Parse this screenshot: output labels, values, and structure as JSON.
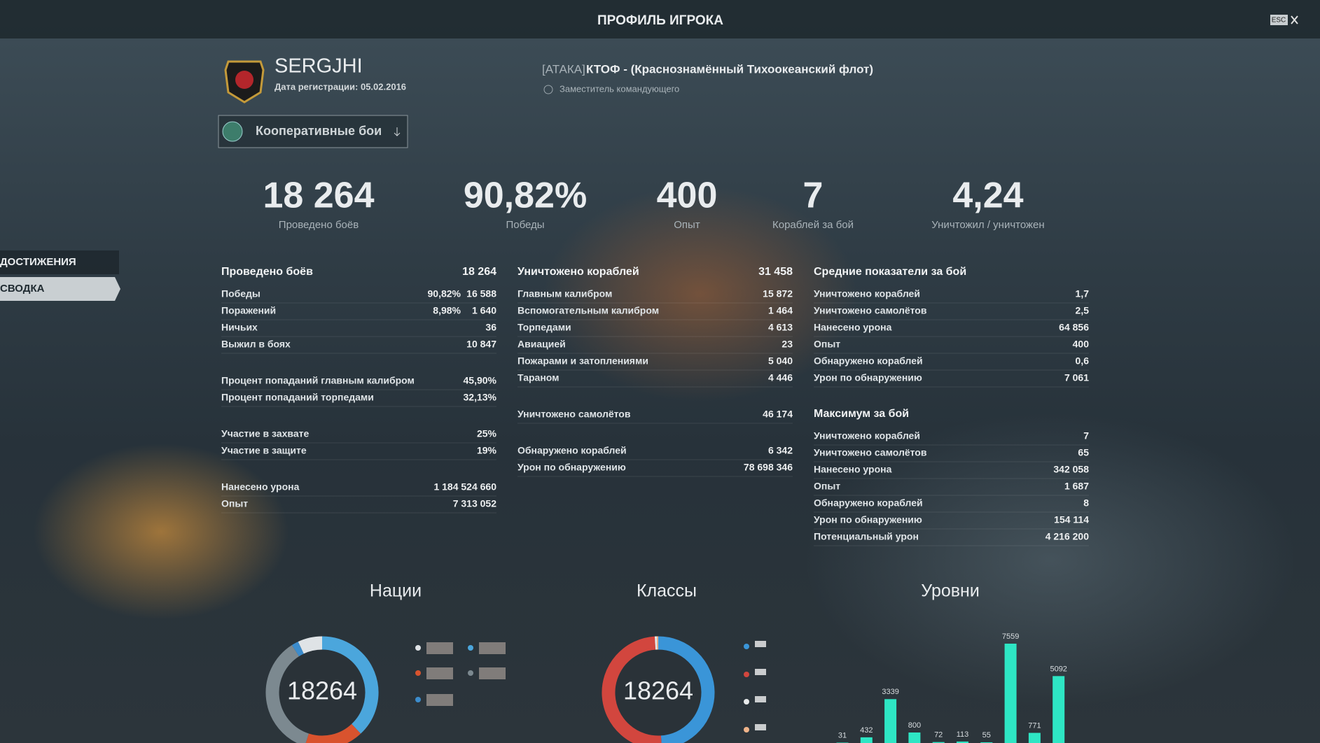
{
  "header": {
    "title": "ПРОФИЛЬ ИГРОКА",
    "close_hint": "ESC"
  },
  "player": {
    "name": "SERGJHI",
    "registration": "Дата регистрации: 05.02.2016",
    "clan_tag": "[АТАКА]",
    "clan_name": "КТОФ - (Краснознамённый Тихоокеанский флот)",
    "clan_role": "Заместитель командующего"
  },
  "mode_select": "Кооперативные бои",
  "side_nav": [
    "ДОСТИЖЕНИЯ",
    "СВОДКА"
  ],
  "headline": [
    {
      "value": "18 264",
      "label": "Проведено боёв"
    },
    {
      "value": "90,82%",
      "label": "Победы"
    },
    {
      "value": "400",
      "label": "Опыт"
    },
    {
      "value": "7",
      "label": "Кораблей за бой"
    },
    {
      "value": "4,24",
      "label": "Уничтожил / уничтожен"
    }
  ],
  "columns": [
    {
      "sections": [
        {
          "title": "Проведено боёв",
          "value": "18 264",
          "groups": [
            [
              {
                "label": "Победы",
                "values": [
                  "90,82%",
                  "16 588"
                ]
              },
              {
                "label": "Поражений",
                "values": [
                  "8,98%",
                  "1 640"
                ]
              },
              {
                "label": "Ничьих",
                "values": [
                  "36"
                ]
              },
              {
                "label": "Выжил в боях",
                "values": [
                  "10 847"
                ]
              }
            ],
            [
              {
                "label": "Процент попаданий главным калибром",
                "values": [
                  "45,90%"
                ]
              },
              {
                "label": "Процент попаданий торпедами",
                "values": [
                  "32,13%"
                ]
              }
            ],
            [
              {
                "label": "Участие в захвате",
                "values": [
                  "25%"
                ]
              },
              {
                "label": "Участие в защите",
                "values": [
                  "19%"
                ]
              }
            ],
            [
              {
                "label": "Нанесено урона",
                "values": [
                  "1 184 524 660"
                ]
              },
              {
                "label": "Опыт",
                "values": [
                  "7 313 052"
                ]
              }
            ]
          ]
        }
      ]
    },
    {
      "sections": [
        {
          "title": "Уничтожено кораблей",
          "value": "31 458",
          "groups": [
            [
              {
                "label": "Главным калибром",
                "values": [
                  "15 872"
                ]
              },
              {
                "label": "Вспомогательным калибром",
                "values": [
                  "1 464"
                ]
              },
              {
                "label": "Торпедами",
                "values": [
                  "4 613"
                ]
              },
              {
                "label": "Авиацией",
                "values": [
                  "23"
                ]
              },
              {
                "label": "Пожарами и затоплениями",
                "values": [
                  "5 040"
                ]
              },
              {
                "label": "Тараном",
                "values": [
                  "4 446"
                ]
              }
            ],
            [
              {
                "label": "Уничтожено самолётов",
                "values": [
                  "46 174"
                ]
              }
            ],
            [
              {
                "label": "Обнаружено кораблей",
                "values": [
                  "6 342"
                ]
              },
              {
                "label": "Урон по обнаружению",
                "values": [
                  "78 698 346"
                ]
              }
            ]
          ]
        }
      ]
    },
    {
      "sections": [
        {
          "title": "Средние показатели за бой",
          "groups": [
            [
              {
                "label": "Уничтожено кораблей",
                "values": [
                  "1,7"
                ]
              },
              {
                "label": "Уничтожено самолётов",
                "values": [
                  "2,5"
                ]
              },
              {
                "label": "Нанесено урона",
                "values": [
                  "64 856"
                ]
              },
              {
                "label": "Опыт",
                "values": [
                  "400"
                ]
              },
              {
                "label": "Обнаружено кораблей",
                "values": [
                  "0,6"
                ]
              },
              {
                "label": "Урон по обнаружению",
                "values": [
                  "7 061"
                ]
              }
            ]
          ]
        },
        {
          "title": "Максимум за бой",
          "groups": [
            [
              {
                "label": "Уничтожено кораблей",
                "values": [
                  "7"
                ]
              },
              {
                "label": "Уничтожено самолётов",
                "values": [
                  "65"
                ]
              },
              {
                "label": "Нанесено урона",
                "values": [
                  "342 058"
                ]
              },
              {
                "label": "Опыт",
                "values": [
                  "1 687"
                ]
              },
              {
                "label": "Обнаружено кораблей",
                "values": [
                  "8"
                ]
              },
              {
                "label": "Урон по обнаружению",
                "values": [
                  "154 114"
                ]
              },
              {
                "label": "Потенциальный урон",
                "values": [
                  "4 216 200"
                ]
              }
            ]
          ]
        }
      ]
    }
  ],
  "chart_data": [
    {
      "type": "donut",
      "title": "Нации",
      "total": 18264,
      "values": [
        38,
        17,
        36,
        2,
        7
      ],
      "colors": [
        "#4ba6dc",
        "#d9532e",
        "#7c8990",
        "#3c8ccc",
        "#dfe3e6"
      ]
    },
    {
      "type": "donut",
      "title": "Классы",
      "total": 18264,
      "values": [
        49,
        50,
        0.6,
        0.4
      ],
      "colors": [
        "#3a95d8",
        "#d2463e",
        "#e8eaeb",
        "#f0b48a"
      ]
    },
    {
      "type": "bar",
      "title": "Уровни",
      "categories": [
        null,
        null,
        null,
        null,
        null,
        null,
        null,
        null,
        null,
        null
      ],
      "values": [
        31,
        432,
        3339,
        800,
        72,
        113,
        55,
        7559,
        771,
        5092
      ],
      "color": "#2ee6c4"
    }
  ]
}
